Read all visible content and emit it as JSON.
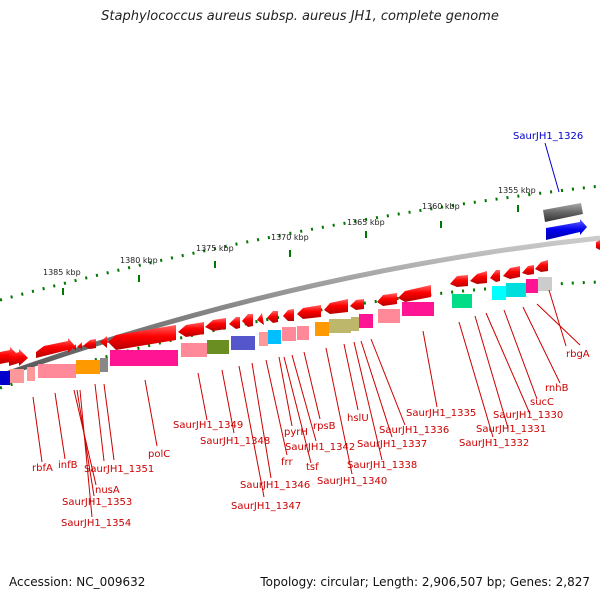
{
  "header": {
    "title": "Staphylococcus aureus subsp. aureus JH1, complete genome"
  },
  "footer": {
    "accession": "Accession: NC_009632",
    "summary": "Topology: circular; Length: 2,906,507 bp; Genes: 2,827"
  },
  "scale_labels": [
    "1385 kbp",
    "1380 kbp",
    "1375 kbp",
    "1370 kbp",
    "1365 kbp",
    "1360 kbp",
    "1355 kbp"
  ],
  "highlight_label": "SaurJH1_1326",
  "gene_labels": [
    "rbfA",
    "infB",
    "nusA",
    "SaurJH1_1353",
    "SaurJH1_1354",
    "SaurJH1_1351",
    "polC",
    "SaurJH1_1349",
    "SaurJH1_1348",
    "SaurJH1_1347",
    "SaurJH1_1346",
    "frr",
    "pyrH",
    "tsf",
    "SaurJH1_1342",
    "rpsB",
    "SaurJH1_1340",
    "hslU",
    "SaurJH1_1338",
    "SaurJH1_1337",
    "SaurJH1_1336",
    "SaurJH1_1335",
    "SaurJH1_1332",
    "SaurJH1_1331",
    "SaurJH1_1330",
    "sucC",
    "rnhB",
    "rbgA"
  ],
  "colors": {
    "backbone": "#888888",
    "gene_forward": "#ff0000",
    "gene_dark": "#666666",
    "gene_blue": "#0000ee",
    "label_red": "#cc0000",
    "label_blue": "#0000cc",
    "tick_green": "#007700"
  }
}
